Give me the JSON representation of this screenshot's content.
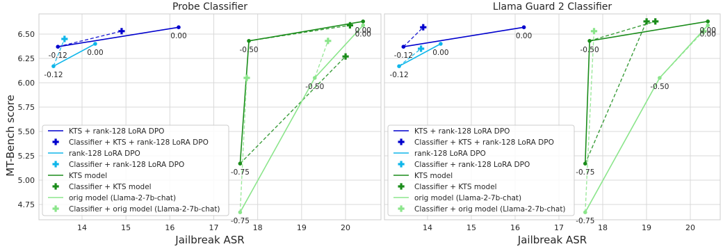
{
  "figure": {
    "ylabel": "MT-Bench score"
  },
  "chart_data": [
    {
      "type": "line",
      "title": "Probe Classifier",
      "xlabel": "Jailbreak ASR",
      "ylabel": "MT-Bench score",
      "xlim": [
        13.0,
        21.3
      ],
      "ylim": [
        4.6,
        6.76
      ],
      "xticks": [
        "14",
        "15",
        "16",
        "17",
        "18",
        "19",
        "20"
      ],
      "yticks": [
        "4.75",
        "5.00",
        "5.25",
        "5.50",
        "5.75",
        "6.00",
        "6.25",
        "6.50"
      ],
      "grid": true,
      "legend_position": "lower-left",
      "series": [
        {
          "name": "KTS + rank-128 LoRA DPO",
          "kind": "line",
          "color": "#0000cd",
          "points": [
            [
              13.45,
              6.37
            ],
            [
              16.2,
              6.57
            ]
          ]
        },
        {
          "name": "Classifier + KTS + rank-128 LoRA DPO",
          "kind": "marker",
          "color": "#0000cd",
          "points": [
            [
              13.45,
              6.37
            ],
            [
              14.9,
              6.53
            ]
          ]
        },
        {
          "name": "rank-128 LoRA DPO",
          "kind": "line",
          "color": "#0fb6ea",
          "points": [
            [
              13.35,
              6.17
            ],
            [
              14.3,
              6.4
            ]
          ]
        },
        {
          "name": "Classifier + rank-128 LoRA DPO",
          "kind": "marker",
          "color": "#0fb6ea",
          "points": [
            [
              13.35,
              6.17
            ],
            [
              13.6,
              6.45
            ]
          ]
        },
        {
          "name": "KTS model",
          "kind": "line",
          "color": "#1a8c1a",
          "points": [
            [
              17.6,
              5.17
            ],
            [
              17.8,
              6.43
            ],
            [
              20.4,
              6.63
            ]
          ]
        },
        {
          "name": "Classifier + KTS model",
          "kind": "marker",
          "color": "#1a8c1a",
          "points": [
            [
              17.6,
              5.17
            ],
            [
              20.0,
              6.27
            ],
            [
              17.8,
              6.43
            ],
            [
              20.1,
              6.59
            ]
          ]
        },
        {
          "name": "orig model (Llama-2-7b-chat)",
          "kind": "line",
          "color": "#8be58b",
          "points": [
            [
              17.6,
              4.67
            ],
            [
              19.3,
              6.05
            ],
            [
              20.4,
              6.59
            ]
          ]
        },
        {
          "name": "Classifier + orig model (Llama-2-7b-chat)",
          "kind": "marker",
          "color": "#8be58b",
          "points": [
            [
              17.6,
              4.67
            ],
            [
              17.75,
              6.05
            ],
            [
              19.3,
              6.05
            ],
            [
              19.6,
              6.43
            ]
          ]
        }
      ],
      "annotations": [
        {
          "text": "-0.12",
          "at": [
            13.45,
            6.37
          ],
          "pos": "below"
        },
        {
          "text": "0.00",
          "at": [
            16.2,
            6.57
          ],
          "pos": "below"
        },
        {
          "text": "-0.12",
          "at": [
            13.35,
            6.17
          ],
          "pos": "below"
        },
        {
          "text": "0.00",
          "at": [
            14.3,
            6.4
          ],
          "pos": "below"
        },
        {
          "text": "-0.75",
          "at": [
            17.6,
            5.17
          ],
          "pos": "below"
        },
        {
          "text": "-0.50",
          "at": [
            17.8,
            6.43
          ],
          "pos": "below"
        },
        {
          "text": "0.00",
          "at": [
            20.4,
            6.63
          ],
          "pos": "below"
        },
        {
          "text": "-0.75",
          "at": [
            17.6,
            4.67
          ],
          "pos": "below"
        },
        {
          "text": "-0.50",
          "at": [
            19.3,
            6.05
          ],
          "pos": "below"
        },
        {
          "text": "0.00",
          "at": [
            20.4,
            6.59
          ],
          "pos": "below"
        }
      ]
    },
    {
      "type": "line",
      "title": "Llama Guard 2 Classifier",
      "xlabel": "Jailbreak ASR",
      "ylabel": "",
      "xlim": [
        13.0,
        21.3
      ],
      "ylim": [
        4.6,
        6.76
      ],
      "xticks": [
        "14",
        "15",
        "16",
        "17",
        "18",
        "19",
        "20"
      ],
      "yticks": [],
      "grid": true,
      "legend_position": "lower-left",
      "series": [
        {
          "name": "KTS + rank-128 LoRA DPO",
          "kind": "line",
          "color": "#0000cd",
          "points": [
            [
              13.45,
              6.37
            ],
            [
              16.2,
              6.57
            ]
          ]
        },
        {
          "name": "Classifier + KTS + rank-128 LoRA DPO",
          "kind": "marker",
          "color": "#0000cd",
          "points": [
            [
              13.45,
              6.37
            ],
            [
              13.9,
              6.57
            ]
          ]
        },
        {
          "name": "rank-128 LoRA DPO",
          "kind": "line",
          "color": "#0fb6ea",
          "points": [
            [
              13.35,
              6.17
            ],
            [
              14.3,
              6.4
            ]
          ]
        },
        {
          "name": "Classifier + rank-128 LoRA DPO",
          "kind": "marker",
          "color": "#0fb6ea",
          "points": [
            [
              13.35,
              6.17
            ],
            [
              13.85,
              6.35
            ]
          ]
        },
        {
          "name": "KTS model",
          "kind": "line",
          "color": "#1a8c1a",
          "points": [
            [
              17.6,
              5.17
            ],
            [
              17.7,
              6.43
            ],
            [
              20.4,
              6.63
            ]
          ]
        },
        {
          "name": "Classifier + KTS model",
          "kind": "marker",
          "color": "#1a8c1a",
          "points": [
            [
              17.6,
              5.17
            ],
            [
              19.0,
              6.63
            ],
            [
              17.7,
              6.43
            ],
            [
              19.2,
              6.63
            ]
          ]
        },
        {
          "name": "orig model (Llama-2-7b-chat)",
          "kind": "line",
          "color": "#8be58b",
          "points": [
            [
              17.6,
              4.67
            ],
            [
              19.3,
              6.05
            ],
            [
              20.4,
              6.59
            ]
          ]
        },
        {
          "name": "Classifier + orig model (Llama-2-7b-chat)",
          "kind": "marker",
          "color": "#8be58b",
          "points": [
            [
              17.6,
              4.67
            ],
            [
              17.8,
              6.53
            ],
            [
              19.3,
              6.05
            ],
            [
              20.3,
              6.53
            ]
          ]
        }
      ],
      "annotations": [
        {
          "text": "-0.12",
          "at": [
            13.45,
            6.37
          ],
          "pos": "below"
        },
        {
          "text": "0.00",
          "at": [
            16.2,
            6.57
          ],
          "pos": "below"
        },
        {
          "text": "-0.12",
          "at": [
            13.35,
            6.17
          ],
          "pos": "below"
        },
        {
          "text": "0.00",
          "at": [
            14.3,
            6.4
          ],
          "pos": "below"
        },
        {
          "text": "-0.75",
          "at": [
            17.6,
            5.17
          ],
          "pos": "below"
        },
        {
          "text": "-0.50",
          "at": [
            17.7,
            6.43
          ],
          "pos": "below"
        },
        {
          "text": "0.00",
          "at": [
            20.4,
            6.63
          ],
          "pos": "below"
        },
        {
          "text": "-0.75",
          "at": [
            17.6,
            4.67
          ],
          "pos": "below"
        },
        {
          "text": "-0.50",
          "at": [
            19.3,
            6.05
          ],
          "pos": "below"
        },
        {
          "text": "0.00",
          "at": [
            20.4,
            6.59
          ],
          "pos": "below"
        }
      ]
    }
  ]
}
